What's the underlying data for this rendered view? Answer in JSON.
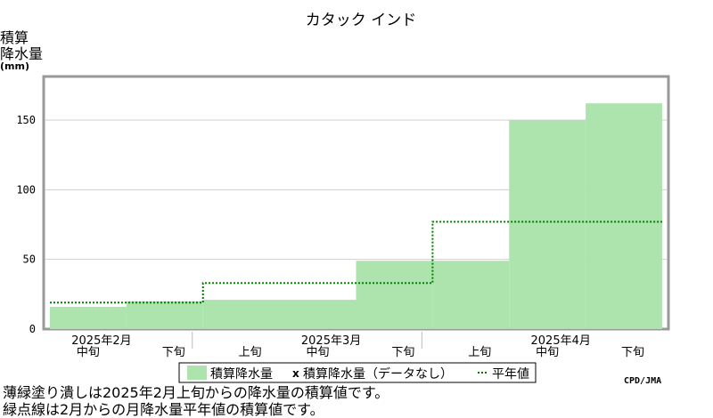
{
  "chart_data": {
    "type": "area",
    "title": "カタック インド",
    "ylabel": [
      "積算",
      "降水量"
    ],
    "yunit": "(mm)",
    "ylim": [
      0,
      160
    ],
    "yticks": [
      0,
      50,
      100,
      150
    ],
    "x_periods": [
      {
        "month": "2025年2月",
        "dekad": "中旬"
      },
      {
        "month": "",
        "dekad": "下旬"
      },
      {
        "month": "",
        "dekad": "上旬"
      },
      {
        "month": "2025年3月",
        "dekad": "中旬"
      },
      {
        "month": "",
        "dekad": "下旬"
      },
      {
        "month": "",
        "dekad": "上旬"
      },
      {
        "month": "2025年4月",
        "dekad": "中旬"
      },
      {
        "month": "",
        "dekad": "下旬"
      }
    ],
    "series": [
      {
        "name": "積算降水量",
        "type": "area",
        "color": "#ade3ad",
        "segments": [
          {
            "x0": 0,
            "x1": 1,
            "value": 16
          },
          {
            "x0": 1,
            "x1": 2,
            "value": 20
          },
          {
            "x0": 2,
            "x1": 4,
            "value": 21
          },
          {
            "x0": 4,
            "x1": 5,
            "value": 49
          },
          {
            "x0": 5,
            "x1": 6,
            "value": 49
          },
          {
            "x0": 6,
            "x1": 7,
            "value": 150
          },
          {
            "x0": 7,
            "x1": 8,
            "value": 162
          }
        ]
      },
      {
        "name": "積算降水量（データなし）",
        "type": "marker",
        "marker": "x",
        "segments": []
      },
      {
        "name": "平年値",
        "type": "step",
        "color": "#008000",
        "line_style": "dotted",
        "segments": [
          {
            "x0": 0,
            "x1": 2,
            "value": 19
          },
          {
            "x0": 2,
            "x1": 4,
            "value": 33
          },
          {
            "x0": 4,
            "x1": 5,
            "value": 33
          },
          {
            "x0": 5,
            "x1": 8,
            "value": 77
          }
        ]
      }
    ],
    "legend": {
      "placement": "bottom",
      "items": [
        "積算降水量",
        "積算降水量（データなし）",
        "平年値"
      ]
    },
    "notes": [
      "薄緑塗り潰しは2025年2月上旬からの降水量の積算値です。",
      "緑点線は2月からの月降水量平年値の積算値です。"
    ],
    "credit": "CPD/JMA",
    "grid": true
  }
}
